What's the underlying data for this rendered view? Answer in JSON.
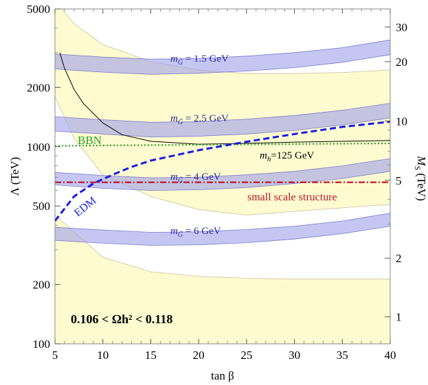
{
  "chart_data": {
    "type": "line",
    "title": "",
    "xlabel": "tan β",
    "ylabel": "Λ (TeV)",
    "ylabel_right": "M_S (TeV)",
    "xlim": [
      5,
      40
    ],
    "ylim": [
      100,
      5000
    ],
    "yscale": "log",
    "grid": false,
    "x_ticks": [
      5,
      10,
      15,
      20,
      25,
      30,
      35,
      40
    ],
    "y_ticks": [
      100,
      200,
      500,
      1000,
      2000,
      5000
    ],
    "right_ticks": [
      {
        "label": "1",
        "lambda": 137
      },
      {
        "label": "2",
        "lambda": 272
      },
      {
        "label": "5",
        "lambda": 675
      },
      {
        "label": "10",
        "lambda": 1350
      },
      {
        "label": "20",
        "lambda": 2700
      },
      {
        "label": "30",
        "lambda": 4050
      }
    ],
    "relic_density_label": "0.106 < Ωh² < 0.118",
    "yellow_band": {
      "x": [
        5,
        7,
        10,
        15,
        20,
        25,
        30,
        35,
        40
      ],
      "upper": [
        5500,
        4200,
        3300,
        2700,
        2450,
        2350,
        2350,
        2380,
        2450
      ],
      "lower": [
        1800,
        1100,
        720,
        560,
        480,
        450,
        470,
        490,
        510
      ]
    },
    "yellow_band_lower": {
      "x": [
        5,
        10,
        15,
        20,
        25,
        30,
        35,
        40
      ],
      "upper": [
        450,
        275,
        232,
        220,
        215,
        213,
        213,
        213
      ],
      "lower": [
        100,
        100,
        100,
        100,
        100,
        100,
        100,
        100
      ]
    },
    "gravitino_bands": [
      {
        "label_mass": "1.5 GeV",
        "x": [
          5,
          10,
          15,
          20,
          25,
          30,
          35,
          40
        ],
        "upper": [
          2950,
          2850,
          2780,
          2800,
          2880,
          3000,
          3180,
          3480
        ],
        "lower": [
          2480,
          2390,
          2330,
          2360,
          2420,
          2520,
          2680,
          2930
        ]
      },
      {
        "label_mass": "2.5 GeV",
        "x": [
          5,
          10,
          15,
          20,
          25,
          30,
          35,
          40
        ],
        "upper": [
          1420,
          1370,
          1330,
          1340,
          1380,
          1440,
          1530,
          1660
        ],
        "lower": [
          1200,
          1160,
          1120,
          1130,
          1160,
          1210,
          1290,
          1400
        ]
      },
      {
        "label_mass": "4 GeV",
        "x": [
          5,
          10,
          15,
          20,
          25,
          30,
          35,
          40
        ],
        "upper": [
          740,
          715,
          695,
          700,
          720,
          750,
          800,
          870
        ],
        "lower": [
          640,
          615,
          600,
          605,
          620,
          650,
          690,
          750
        ]
      },
      {
        "label_mass": "6 GeV",
        "x": [
          5,
          10,
          15,
          20,
          25,
          30,
          35,
          40
        ],
        "upper": [
          390,
          378,
          368,
          370,
          380,
          395,
          420,
          460
        ],
        "lower": [
          335,
          324,
          316,
          318,
          326,
          340,
          362,
          395
        ]
      }
    ],
    "series": [
      {
        "name": "m_h=125 GeV",
        "x": [
          5.5,
          6,
          7,
          8,
          10,
          12,
          15,
          20,
          25,
          30,
          35,
          40
        ],
        "values": [
          3000,
          2500,
          1950,
          1650,
          1320,
          1150,
          1065,
          1030,
          1040,
          1055,
          1065,
          1075
        ]
      },
      {
        "name": "BBN",
        "x": [
          5,
          40
        ],
        "values": [
          1010,
          1040
        ]
      },
      {
        "name": "EDM",
        "x": [
          5,
          7,
          9,
          11,
          13,
          15,
          20,
          25,
          30,
          35,
          40
        ],
        "values": [
          420,
          560,
          650,
          720,
          790,
          850,
          960,
          1060,
          1160,
          1260,
          1340
        ]
      },
      {
        "name": "small scale structure",
        "x": [
          5,
          40
        ],
        "values": [
          660,
          660
        ]
      }
    ],
    "annotations": {
      "bbn": "BBN",
      "edm": "EDM",
      "sss": "small scale structure",
      "mh_m": "m",
      "mh_sub": "h",
      "mh_rest": "=125 GeV",
      "mg_m": "m",
      "mg_sub": "G̃",
      "mg_eq": " = "
    }
  }
}
